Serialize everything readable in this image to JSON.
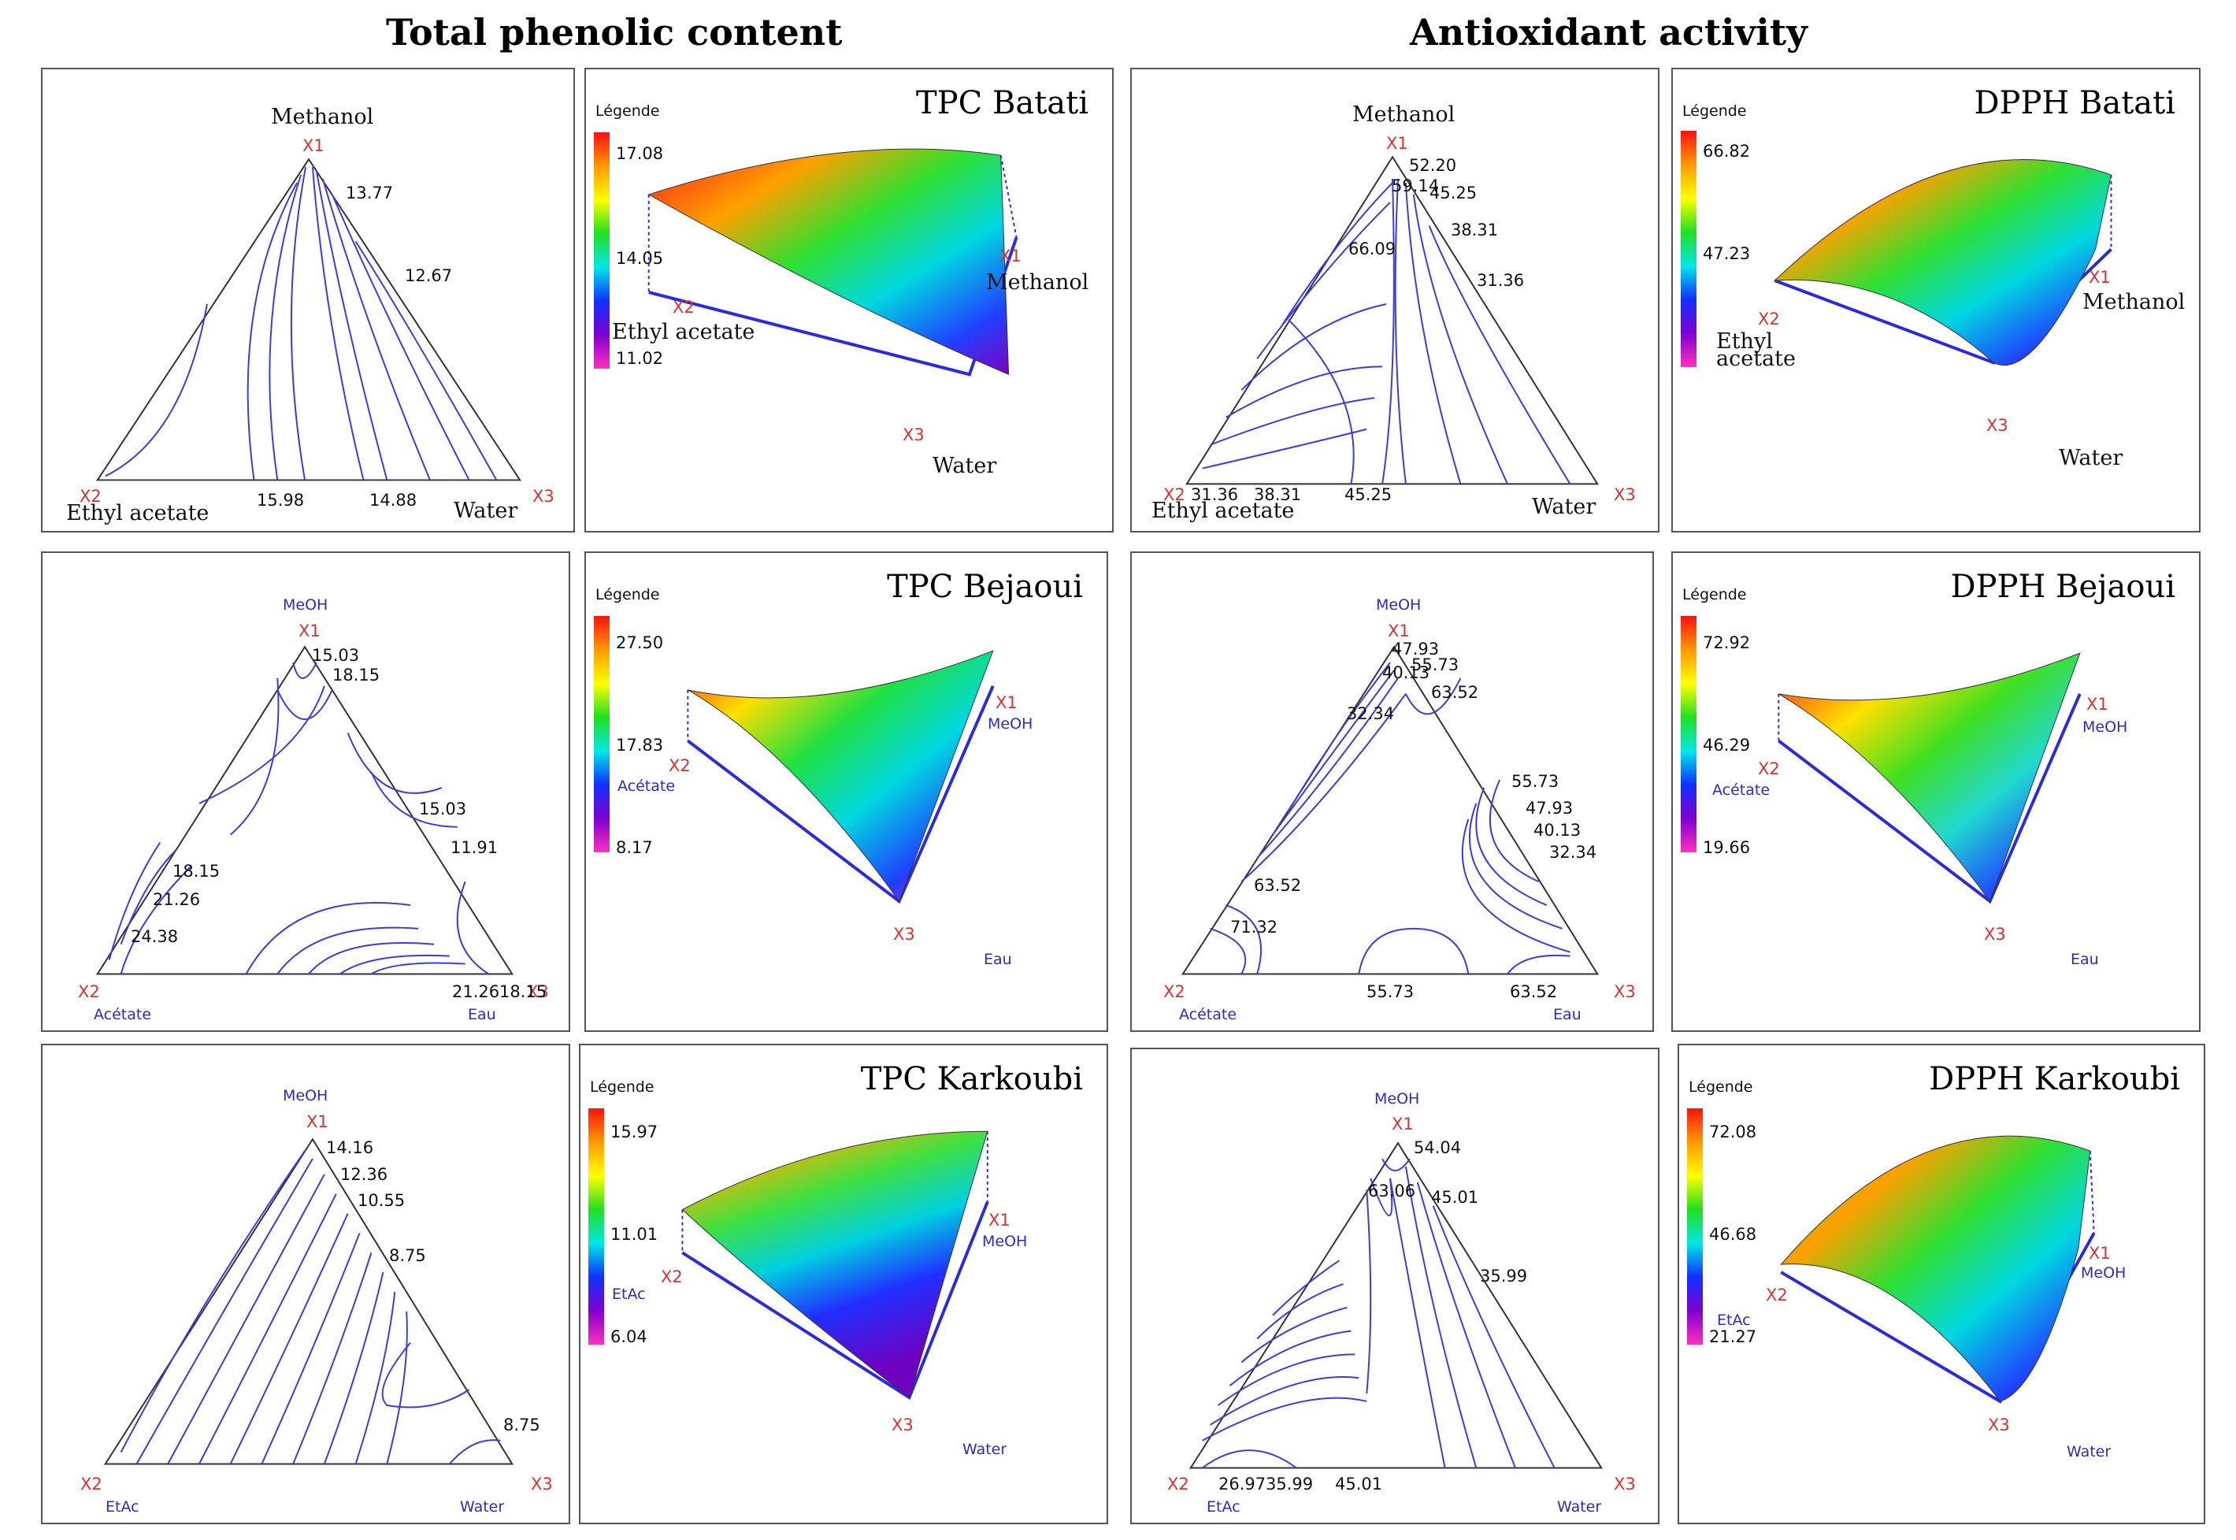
{
  "headers": {
    "tpc": "Total phenolic content",
    "aa": "Antioxidant activity"
  },
  "legend_heading": "Légende",
  "vertex_marks": {
    "x1": "X1",
    "x2": "X2",
    "x3": "X3"
  },
  "colors": {
    "contour": "#3a3ae8",
    "mark": "#e03030",
    "frame": "#555555"
  },
  "rows": [
    {
      "tpc": {
        "title": "TPC Batati",
        "contour": {
          "top_label": "Methanol",
          "left_label": "Ethyl acetate",
          "right_label": "Water",
          "values": [
            "13.77",
            "12.67",
            "15.98",
            "14.88"
          ]
        },
        "surface": {
          "legend": [
            "17.08",
            "14.05",
            "11.02"
          ],
          "solvent_x1": "Methanol",
          "solvent_x2": "Ethyl acetate",
          "solvent_x3": "Water"
        }
      },
      "aa": {
        "title": "DPPH Batati",
        "contour": {
          "top_label": "Methanol",
          "left_label": "Ethyl acetate",
          "right_label": "Water",
          "values": [
            "52.20",
            "59.14",
            "45.25",
            "38.31",
            "66.09",
            "31.36",
            "31.36",
            "38.31",
            "45.25"
          ]
        },
        "surface": {
          "legend": [
            "66.82",
            "47.23"
          ],
          "solvent_x1": "Methanol",
          "solvent_x2_a": "Ethyl",
          "solvent_x2_b": "acetate",
          "solvent_x3": "Water"
        }
      }
    },
    {
      "tpc": {
        "title": "TPC Bejaoui",
        "contour": {
          "top_label": "MeOH",
          "left_label": "Acétate",
          "right_label": "Eau",
          "values": [
            "15.03",
            "18.15",
            "15.03",
            "11.91",
            "18.15",
            "21.26",
            "24.38",
            "21.26",
            "18.15"
          ]
        },
        "surface": {
          "legend": [
            "27.50",
            "17.83",
            "8.17"
          ],
          "solvent_x1": "MeOH",
          "solvent_x2": "Acétate",
          "solvent_x3": "Eau"
        }
      },
      "aa": {
        "title": "DPPH Bejaoui",
        "contour": {
          "top_label": "MeOH",
          "left_label": "Acétate",
          "right_label": "Eau",
          "values": [
            "47.93",
            "40.13",
            "55.73",
            "63.52",
            "32.34",
            "55.73",
            "47.93",
            "40.13",
            "32.34",
            "63.52",
            "71.32",
            "55.73",
            "63.52"
          ]
        },
        "surface": {
          "legend": [
            "72.92",
            "46.29",
            "19.66"
          ],
          "solvent_x1": "MeOH",
          "solvent_x2": "Acétate",
          "solvent_x3": "Eau"
        }
      }
    },
    {
      "tpc": {
        "title": "TPC Karkoubi",
        "contour": {
          "top_label": "MeOH",
          "left_label": "EtAc",
          "right_label": "Water",
          "values": [
            "14.16",
            "12.36",
            "10.55",
            "8.75",
            "8.75"
          ]
        },
        "surface": {
          "legend": [
            "15.97",
            "11.01",
            "6.04"
          ],
          "solvent_x1": "MeOH",
          "solvent_x2": "EtAc",
          "solvent_x3": "Water"
        }
      },
      "aa": {
        "title": "DPPH Karkoubi",
        "contour": {
          "top_label": "MeOH",
          "left_label": "EtAc",
          "right_label": "Water",
          "values": [
            "54.04",
            "63.06",
            "45.01",
            "35.99",
            "26.97",
            "35.99",
            "45.01"
          ]
        },
        "surface": {
          "legend": [
            "72.08",
            "46.68",
            "21.27"
          ],
          "solvent_x1": "MeOH",
          "solvent_x2": "EtAc",
          "solvent_x3": "Water"
        }
      }
    }
  ]
}
